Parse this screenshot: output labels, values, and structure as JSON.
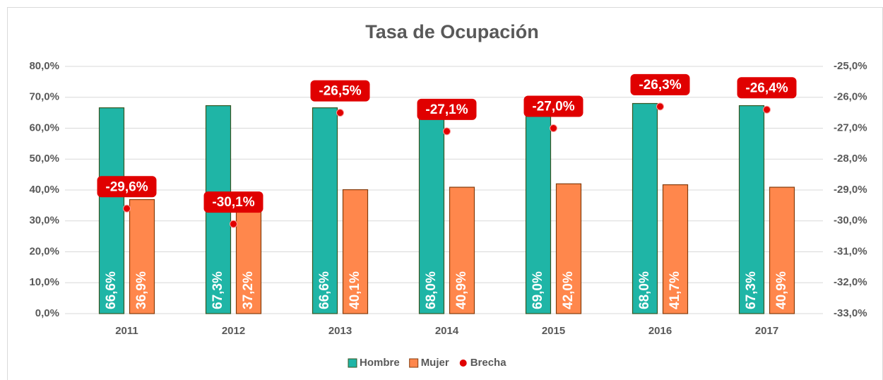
{
  "chart_data": {
    "type": "bar",
    "title": "Tasa de Ocupación",
    "categories": [
      "2011",
      "2012",
      "2013",
      "2014",
      "2015",
      "2016",
      "2017"
    ],
    "series": [
      {
        "name": "Hombre",
        "type": "bar",
        "color": "#1fb5a6",
        "values": [
          66.6,
          67.3,
          66.6,
          68.0,
          69.0,
          68.0,
          67.3
        ],
        "value_labels": [
          "66,6%",
          "67,3%",
          "66,6%",
          "68,0%",
          "69,0%",
          "68,0%",
          "67,3%"
        ]
      },
      {
        "name": "Mujer",
        "type": "bar",
        "color": "#ff874c",
        "values": [
          36.9,
          37.2,
          40.1,
          40.9,
          42.0,
          41.7,
          40.9
        ],
        "value_labels": [
          "36,9%",
          "37,2%",
          "40,1%",
          "40,9%",
          "42,0%",
          "41,7%",
          "40,9%"
        ]
      },
      {
        "name": "Brecha",
        "type": "scatter",
        "axis": "y2",
        "color": "#e00000",
        "values": [
          -29.6,
          -30.1,
          -26.5,
          -27.1,
          -27.0,
          -26.3,
          -26.4
        ],
        "value_labels": [
          "-29,6%",
          "-30,1%",
          "-26,5%",
          "-27,1%",
          "-27,0%",
          "-26,3%",
          "-26,4%"
        ]
      }
    ],
    "ylim": [
      0,
      80
    ],
    "yticks": [
      {
        "value": 0,
        "label": "0,0%"
      },
      {
        "value": 10,
        "label": "10,0%"
      },
      {
        "value": 20,
        "label": "20,0%"
      },
      {
        "value": 30,
        "label": "30,0%"
      },
      {
        "value": 40,
        "label": "40,0%"
      },
      {
        "value": 50,
        "label": "50,0%"
      },
      {
        "value": 60,
        "label": "60,0%"
      },
      {
        "value": 70,
        "label": "70,0%"
      },
      {
        "value": 80,
        "label": "80,0%"
      }
    ],
    "y2lim": [
      -33,
      -25
    ],
    "y2ticks": [
      {
        "value": -33,
        "label": "-33,0%"
      },
      {
        "value": -32,
        "label": "-32,0%"
      },
      {
        "value": -31,
        "label": "-31,0%"
      },
      {
        "value": -30,
        "label": "-30,0%"
      },
      {
        "value": -29,
        "label": "-29,0%"
      },
      {
        "value": -28,
        "label": "-28,0%"
      },
      {
        "value": -27,
        "label": "-27,0%"
      },
      {
        "value": -26,
        "label": "-26,0%"
      },
      {
        "value": -25,
        "label": "-25,0%"
      }
    ],
    "grid": true,
    "legend": "bottom"
  }
}
